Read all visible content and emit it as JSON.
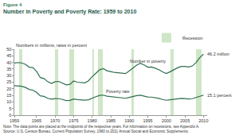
{
  "chart_data": {
    "type": "line",
    "figure_label": "Figure 4",
    "title": "Number in Poverty and Poverty Rate: 1959 to 2010",
    "subtitle": "Numbers in millions, rates in percent",
    "x": [
      1959,
      1960,
      1961,
      1962,
      1963,
      1964,
      1965,
      1966,
      1967,
      1968,
      1969,
      1970,
      1971,
      1972,
      1973,
      1974,
      1975,
      1976,
      1977,
      1978,
      1979,
      1980,
      1981,
      1982,
      1983,
      1984,
      1985,
      1986,
      1987,
      1988,
      1989,
      1990,
      1991,
      1992,
      1993,
      1994,
      1995,
      1996,
      1997,
      1998,
      1999,
      2000,
      2001,
      2002,
      2003,
      2004,
      2005,
      2006,
      2007,
      2008,
      2009,
      2010
    ],
    "series": [
      {
        "name": "Number in poverty",
        "color": "#2f6f4f",
        "end_label": "46.2 million",
        "values": [
          39.5,
          39.9,
          39.6,
          38.6,
          36.4,
          36.1,
          33.2,
          28.5,
          27.8,
          25.4,
          24.1,
          25.4,
          25.6,
          24.5,
          23.0,
          23.4,
          25.9,
          25.0,
          24.7,
          24.5,
          26.1,
          29.3,
          31.8,
          34.4,
          35.3,
          33.7,
          33.1,
          32.4,
          32.2,
          31.7,
          31.5,
          33.6,
          35.7,
          38.0,
          39.3,
          38.1,
          36.4,
          36.5,
          35.6,
          34.5,
          32.8,
          31.6,
          32.9,
          34.6,
          35.9,
          37.0,
          37.0,
          36.5,
          37.3,
          39.8,
          43.6,
          46.2
        ]
      },
      {
        "name": "Poverty rate",
        "color": "#2f6f4f",
        "end_label": "15.1 percent",
        "values": [
          22.4,
          22.2,
          21.9,
          21.0,
          19.5,
          19.0,
          17.3,
          14.7,
          14.2,
          12.8,
          12.1,
          12.6,
          12.5,
          11.9,
          11.1,
          11.2,
          12.3,
          11.8,
          11.6,
          11.4,
          11.7,
          13.0,
          14.0,
          15.0,
          15.2,
          14.4,
          14.0,
          13.6,
          13.4,
          13.0,
          12.8,
          13.5,
          14.2,
          14.8,
          15.1,
          14.5,
          13.8,
          13.7,
          13.3,
          12.7,
          11.9,
          11.3,
          11.7,
          12.1,
          12.5,
          12.7,
          12.6,
          12.3,
          12.5,
          13.2,
          14.3,
          15.1
        ]
      }
    ],
    "recessions": {
      "name": "Recession",
      "color": "#cfe6c7",
      "periods": [
        [
          1960.3,
          1961.1
        ],
        [
          1969.9,
          1970.9
        ],
        [
          1973.8,
          1975.2
        ],
        [
          1980.0,
          1980.5
        ],
        [
          1981.5,
          1982.9
        ],
        [
          1990.5,
          1991.2
        ],
        [
          2001.2,
          2001.9
        ],
        [
          2007.9,
          2009.5
        ]
      ]
    },
    "xlim": [
      1959,
      2011
    ],
    "xticks": [
      1959,
      1965,
      1970,
      1975,
      1980,
      1985,
      1990,
      1995,
      2000,
      2005,
      2010
    ],
    "ylim": [
      0,
      50
    ],
    "yticks": [
      0,
      5,
      10,
      15,
      20,
      25,
      30,
      35,
      40,
      45,
      50
    ],
    "grid": false,
    "legend": "top right",
    "notes": [
      "Note: The data points are placed at the midpoints of the respective years. For information on recessions, see Appendix A.",
      "Source: U.S. Census Bureau, Current Population Survey, 1960 to 2011 Annual Social and Economic Supplements."
    ]
  }
}
